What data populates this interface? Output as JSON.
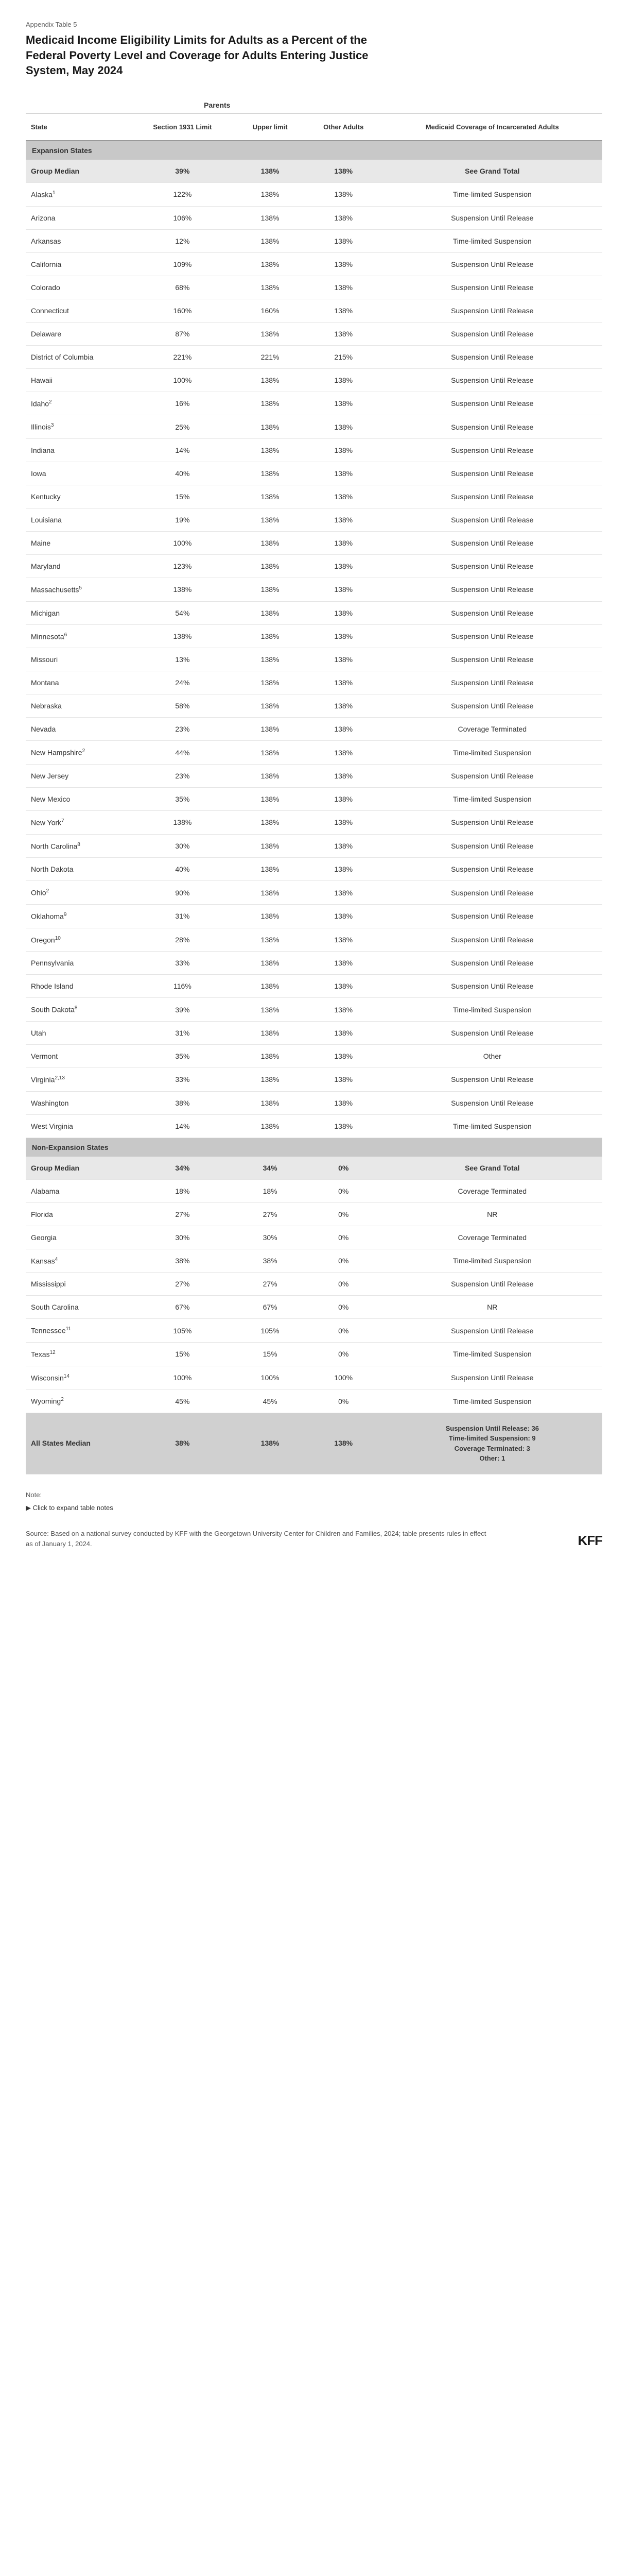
{
  "appendix_label": "Appendix Table 5",
  "title": "Medicaid Income Eligibility Limits for Adults as a Percent of the Federal Poverty Level and Coverage for Adults Entering Justice System, May 2024",
  "super_headers": {
    "parents": "Parents"
  },
  "columns": [
    "State",
    "Section 1931 Limit",
    "Upper limit",
    "Other Adults",
    "Medicaid Coverage of Incarcerated Adults"
  ],
  "sections": [
    {
      "name": "Expansion States",
      "median": {
        "label": "Group Median",
        "values": [
          "39%",
          "138%",
          "138%",
          "See Grand Total"
        ]
      },
      "rows": [
        {
          "state": "Alaska",
          "sup": "1",
          "values": [
            "122%",
            "138%",
            "138%",
            "Time-limited Suspension"
          ]
        },
        {
          "state": "Arizona",
          "sup": "",
          "values": [
            "106%",
            "138%",
            "138%",
            "Suspension Until Release"
          ]
        },
        {
          "state": "Arkansas",
          "sup": "",
          "values": [
            "12%",
            "138%",
            "138%",
            "Time-limited Suspension"
          ]
        },
        {
          "state": "California",
          "sup": "",
          "values": [
            "109%",
            "138%",
            "138%",
            "Suspension Until Release"
          ]
        },
        {
          "state": "Colorado",
          "sup": "",
          "values": [
            "68%",
            "138%",
            "138%",
            "Suspension Until Release"
          ]
        },
        {
          "state": "Connecticut",
          "sup": "",
          "values": [
            "160%",
            "160%",
            "138%",
            "Suspension Until Release"
          ]
        },
        {
          "state": "Delaware",
          "sup": "",
          "values": [
            "87%",
            "138%",
            "138%",
            "Suspension Until Release"
          ]
        },
        {
          "state": "District of Columbia",
          "sup": "",
          "values": [
            "221%",
            "221%",
            "215%",
            "Suspension Until Release"
          ]
        },
        {
          "state": "Hawaii",
          "sup": "",
          "values": [
            "100%",
            "138%",
            "138%",
            "Suspension Until Release"
          ]
        },
        {
          "state": "Idaho",
          "sup": "2",
          "values": [
            "16%",
            "138%",
            "138%",
            "Suspension Until Release"
          ]
        },
        {
          "state": "Illinois",
          "sup": "3",
          "values": [
            "25%",
            "138%",
            "138%",
            "Suspension Until Release"
          ]
        },
        {
          "state": "Indiana",
          "sup": "",
          "values": [
            "14%",
            "138%",
            "138%",
            "Suspension Until Release"
          ]
        },
        {
          "state": "Iowa",
          "sup": "",
          "values": [
            "40%",
            "138%",
            "138%",
            "Suspension Until Release"
          ]
        },
        {
          "state": "Kentucky",
          "sup": "",
          "values": [
            "15%",
            "138%",
            "138%",
            "Suspension Until Release"
          ]
        },
        {
          "state": "Louisiana",
          "sup": "",
          "values": [
            "19%",
            "138%",
            "138%",
            "Suspension Until Release"
          ]
        },
        {
          "state": "Maine",
          "sup": "",
          "values": [
            "100%",
            "138%",
            "138%",
            "Suspension Until Release"
          ]
        },
        {
          "state": "Maryland",
          "sup": "",
          "values": [
            "123%",
            "138%",
            "138%",
            "Suspension Until Release"
          ]
        },
        {
          "state": "Massachusetts",
          "sup": "5",
          "values": [
            "138%",
            "138%",
            "138%",
            "Suspension Until Release"
          ]
        },
        {
          "state": "Michigan",
          "sup": "",
          "values": [
            "54%",
            "138%",
            "138%",
            "Suspension Until Release"
          ]
        },
        {
          "state": "Minnesota",
          "sup": "6",
          "values": [
            "138%",
            "138%",
            "138%",
            "Suspension Until Release"
          ]
        },
        {
          "state": "Missouri",
          "sup": "",
          "values": [
            "13%",
            "138%",
            "138%",
            "Suspension Until Release"
          ]
        },
        {
          "state": "Montana",
          "sup": "",
          "values": [
            "24%",
            "138%",
            "138%",
            "Suspension Until Release"
          ]
        },
        {
          "state": "Nebraska",
          "sup": "",
          "values": [
            "58%",
            "138%",
            "138%",
            "Suspension Until Release"
          ]
        },
        {
          "state": "Nevada",
          "sup": "",
          "values": [
            "23%",
            "138%",
            "138%",
            "Coverage Terminated"
          ]
        },
        {
          "state": "New Hampshire",
          "sup": "2",
          "values": [
            "44%",
            "138%",
            "138%",
            "Time-limited Suspension"
          ]
        },
        {
          "state": "New Jersey",
          "sup": "",
          "values": [
            "23%",
            "138%",
            "138%",
            "Suspension Until Release"
          ]
        },
        {
          "state": "New Mexico",
          "sup": "",
          "values": [
            "35%",
            "138%",
            "138%",
            "Time-limited Suspension"
          ]
        },
        {
          "state": "New York",
          "sup": "7",
          "values": [
            "138%",
            "138%",
            "138%",
            "Suspension Until Release"
          ]
        },
        {
          "state": "North Carolina",
          "sup": "8",
          "values": [
            "30%",
            "138%",
            "138%",
            "Suspension Until Release"
          ]
        },
        {
          "state": "North Dakota",
          "sup": "",
          "values": [
            "40%",
            "138%",
            "138%",
            "Suspension Until Release"
          ]
        },
        {
          "state": "Ohio",
          "sup": "2",
          "values": [
            "90%",
            "138%",
            "138%",
            "Suspension Until Release"
          ]
        },
        {
          "state": "Oklahoma",
          "sup": "9",
          "values": [
            "31%",
            "138%",
            "138%",
            "Suspension Until Release"
          ]
        },
        {
          "state": "Oregon",
          "sup": "10",
          "values": [
            "28%",
            "138%",
            "138%",
            "Suspension Until Release"
          ]
        },
        {
          "state": "Pennsylvania",
          "sup": "",
          "values": [
            "33%",
            "138%",
            "138%",
            "Suspension Until Release"
          ]
        },
        {
          "state": "Rhode Island",
          "sup": "",
          "values": [
            "116%",
            "138%",
            "138%",
            "Suspension Until Release"
          ]
        },
        {
          "state": "South Dakota",
          "sup": "8",
          "values": [
            "39%",
            "138%",
            "138%",
            "Time-limited Suspension"
          ]
        },
        {
          "state": "Utah",
          "sup": "",
          "values": [
            "31%",
            "138%",
            "138%",
            "Suspension Until Release"
          ]
        },
        {
          "state": "Vermont",
          "sup": "",
          "values": [
            "35%",
            "138%",
            "138%",
            "Other"
          ]
        },
        {
          "state": "Virginia",
          "sup": "2,13",
          "values": [
            "33%",
            "138%",
            "138%",
            "Suspension Until Release"
          ]
        },
        {
          "state": "Washington",
          "sup": "",
          "values": [
            "38%",
            "138%",
            "138%",
            "Suspension Until Release"
          ]
        },
        {
          "state": "West Virginia",
          "sup": "",
          "values": [
            "14%",
            "138%",
            "138%",
            "Time-limited Suspension"
          ]
        }
      ]
    },
    {
      "name": "Non-Expansion States",
      "median": {
        "label": "Group Median",
        "values": [
          "34%",
          "34%",
          "0%",
          "See Grand Total"
        ]
      },
      "rows": [
        {
          "state": "Alabama",
          "sup": "",
          "values": [
            "18%",
            "18%",
            "0%",
            "Coverage Terminated"
          ]
        },
        {
          "state": "Florida",
          "sup": "",
          "values": [
            "27%",
            "27%",
            "0%",
            "NR"
          ]
        },
        {
          "state": "Georgia",
          "sup": "",
          "values": [
            "30%",
            "30%",
            "0%",
            "Coverage Terminated"
          ]
        },
        {
          "state": "Kansas",
          "sup": "4",
          "values": [
            "38%",
            "38%",
            "0%",
            "Time-limited Suspension"
          ]
        },
        {
          "state": "Mississippi",
          "sup": "",
          "values": [
            "27%",
            "27%",
            "0%",
            "Suspension Until Release"
          ]
        },
        {
          "state": "South Carolina",
          "sup": "",
          "values": [
            "67%",
            "67%",
            "0%",
            "NR"
          ]
        },
        {
          "state": "Tennessee",
          "sup": "11",
          "values": [
            "105%",
            "105%",
            "0%",
            "Suspension Until Release"
          ]
        },
        {
          "state": "Texas",
          "sup": "12",
          "values": [
            "15%",
            "15%",
            "0%",
            "Time-limited Suspension"
          ]
        },
        {
          "state": "Wisconsin",
          "sup": "14",
          "values": [
            "100%",
            "100%",
            "100%",
            "Suspension Until Release"
          ]
        },
        {
          "state": "Wyoming",
          "sup": "2",
          "values": [
            "45%",
            "45%",
            "0%",
            "Time-limited Suspension"
          ]
        }
      ]
    }
  ],
  "grand_total": {
    "label": "All States Median",
    "values": [
      "38%",
      "138%",
      "138%",
      "Suspension Until Release: 36\nTime-limited Suspension: 9\nCoverage Terminated: 3\nOther: 1"
    ]
  },
  "notes": {
    "label": "Note:",
    "expand_text": "▶ Click to expand table notes"
  },
  "source": "Source: Based on a national survey conducted by KFF with the Georgetown University Center for Children and Families, 2024; table presents rules in effect as of January 1, 2024.",
  "logo": "KFF"
}
